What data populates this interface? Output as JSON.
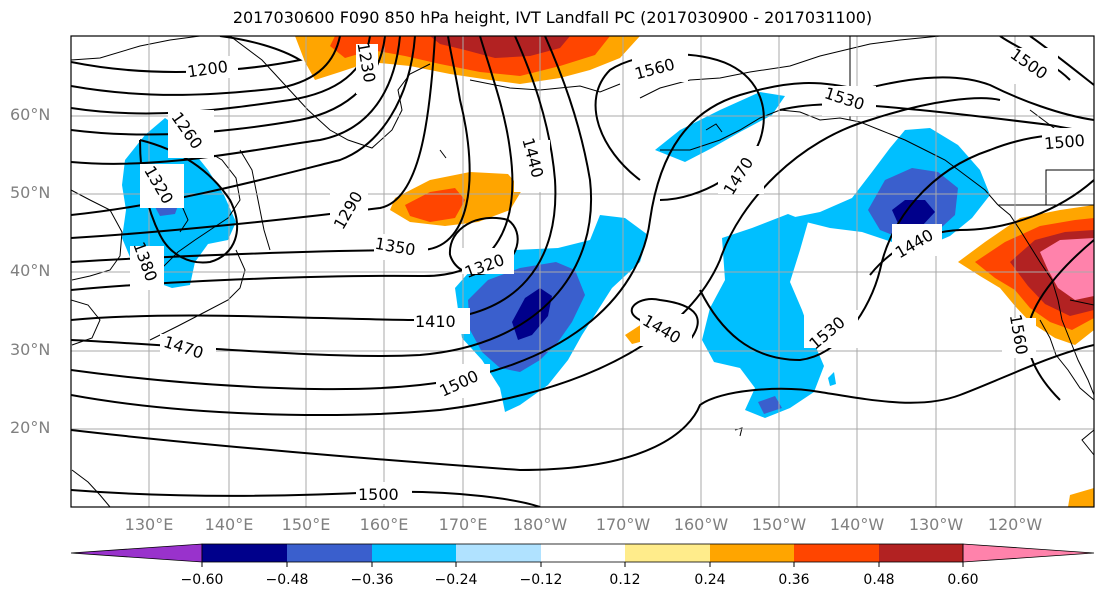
{
  "title": "2017030600 F090 850 hPa height, IVT Landfall PC (2017030900 - 2017031100)",
  "lat_labels": [
    "60°N",
    "50°N",
    "40°N",
    "30°N",
    "20°N"
  ],
  "lon_labels": [
    "130°E",
    "140°E",
    "150°E",
    "160°E",
    "170°E",
    "180°W",
    "170°W",
    "160°W",
    "150°W",
    "140°W",
    "130°W",
    "120°W"
  ],
  "colorbar": {
    "ticks": [
      "−0.60",
      "−0.48",
      "−0.36",
      "−0.24",
      "−0.12",
      "0.12",
      "0.24",
      "0.36",
      "0.48",
      "0.60"
    ],
    "colors": [
      "#9932cc",
      "#00008b",
      "#3a5fcd",
      "#00bfff",
      "#b0e2ff",
      "#ffffff",
      "#ffec8b",
      "#ffa500",
      "#ff4500",
      "#b22222",
      "#ff82ab"
    ]
  },
  "contour_labels": [
    "1200",
    "1230",
    "1260",
    "1290",
    "1320",
    "1350",
    "1380",
    "1410",
    "1440",
    "1470",
    "1500",
    "1530",
    "1560"
  ]
}
